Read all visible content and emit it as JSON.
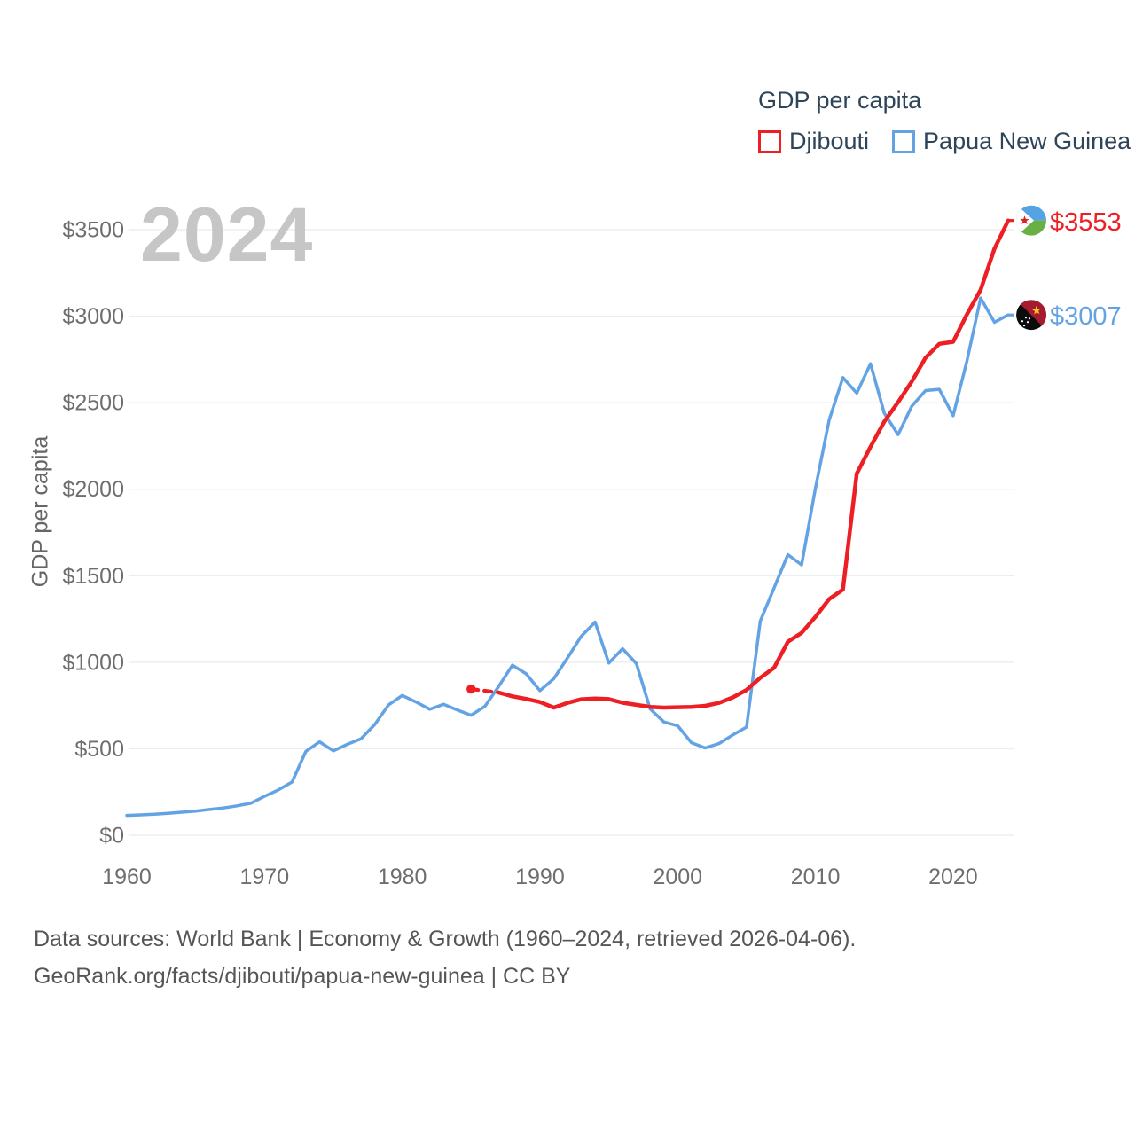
{
  "page": {
    "watermark_year": "2024",
    "footer": {
      "line1": "Data sources: World Bank | Economy & Growth (1960–2024, retrieved 2026-04-06).",
      "line2": "GeoRank.org/facts/djibouti/papua-new-guinea | CC BY"
    }
  },
  "legend": {
    "title": "GDP per capita",
    "items": [
      {
        "label": "Djibouti",
        "color": "#ed1f24"
      },
      {
        "label": "Papua New Guinea",
        "color": "#64a3e3"
      }
    ]
  },
  "colors": {
    "djibouti_line": "#ed1f24",
    "png_line": "#64a3e3",
    "gridline": "#ededed",
    "axis_text": "#6e6e6e",
    "watermark": "#c6c6c6",
    "legend_text": "#2e4458",
    "footer_text": "#565656"
  },
  "chart_data": {
    "type": "line",
    "title": "GDP per capita",
    "xlabel": "",
    "ylabel": "GDP per capita",
    "xlim": [
      1960,
      2024
    ],
    "ylim": [
      0,
      3500
    ],
    "x_ticks": [
      1960,
      1970,
      1980,
      1990,
      2000,
      2010,
      2020
    ],
    "y_ticks": [
      0,
      500,
      1000,
      1500,
      2000,
      2500,
      3000,
      3500
    ],
    "y_tick_prefix": "$",
    "grid": "horizontal",
    "legend_position": "top-right",
    "series": [
      {
        "name": "Djibouti",
        "color": "#ed1f24",
        "end_label": "$3553",
        "end_value": 3553,
        "flag": "djibouti",
        "start_marker_year": 1985,
        "dashed_segment_years": [
          1985,
          1987
        ],
        "x": [
          1985,
          1987,
          1988,
          1989,
          1990,
          1991,
          1992,
          1993,
          1994,
          1995,
          1996,
          1997,
          1998,
          1999,
          2000,
          2001,
          2002,
          2003,
          2004,
          2005,
          2006,
          2007,
          2008,
          2009,
          2010,
          2011,
          2012,
          2013,
          2014,
          2015,
          2016,
          2017,
          2018,
          2019,
          2020,
          2021,
          2022,
          2023,
          2024
        ],
        "values": [
          845,
          825,
          803,
          788,
          770,
          738,
          765,
          786,
          790,
          787,
          766,
          754,
          742,
          738,
          740,
          742,
          748,
          765,
          797,
          840,
          910,
          968,
          1118,
          1170,
          1262,
          1365,
          1420,
          2090,
          2245,
          2390,
          2503,
          2622,
          2760,
          2840,
          2852,
          3010,
          3152,
          3390,
          3553
        ]
      },
      {
        "name": "Papua New Guinea",
        "color": "#64a3e3",
        "end_label": "$3007",
        "end_value": 3007,
        "flag": "papua-new-guinea",
        "x": [
          1960,
          1961,
          1962,
          1963,
          1964,
          1965,
          1966,
          1967,
          1968,
          1969,
          1970,
          1971,
          1972,
          1973,
          1974,
          1975,
          1976,
          1977,
          1978,
          1979,
          1980,
          1981,
          1982,
          1983,
          1984,
          1985,
          1986,
          1987,
          1988,
          1989,
          1990,
          1991,
          1992,
          1993,
          1994,
          1995,
          1996,
          1997,
          1998,
          1999,
          2000,
          2001,
          2002,
          2003,
          2004,
          2005,
          2006,
          2007,
          2008,
          2009,
          2010,
          2011,
          2012,
          2013,
          2014,
          2015,
          2016,
          2017,
          2018,
          2019,
          2020,
          2021,
          2022,
          2023,
          2024
        ],
        "values": [
          115,
          118,
          122,
          127,
          133,
          140,
          149,
          158,
          170,
          185,
          225,
          262,
          308,
          485,
          540,
          488,
          525,
          557,
          640,
          753,
          808,
          770,
          728,
          757,
          724,
          694,
          745,
          860,
          983,
          933,
          836,
          905,
          1025,
          1150,
          1232,
          995,
          1078,
          992,
          730,
          655,
          633,
          535,
          505,
          530,
          580,
          625,
          1238,
          1430,
          1622,
          1563,
          2005,
          2400,
          2645,
          2555,
          2725,
          2440,
          2315,
          2480,
          2570,
          2577,
          2425,
          2740,
          3105,
          2965,
          3007
        ]
      }
    ]
  }
}
